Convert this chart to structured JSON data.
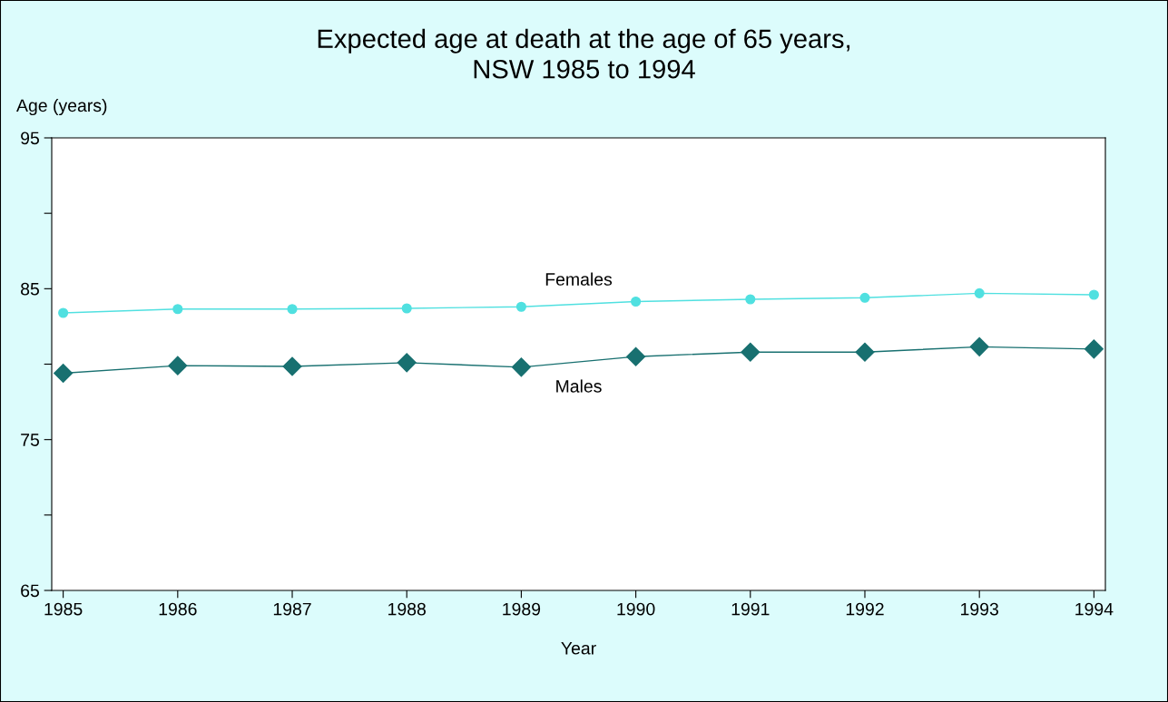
{
  "chart_data": {
    "type": "line",
    "title": "Expected age at death at the age of 65 years,\nNSW 1985 to 1994",
    "xlabel": "Year",
    "ylabel": "Age (years)",
    "x": [
      1985,
      1986,
      1987,
      1988,
      1989,
      1990,
      1991,
      1992,
      1993,
      1994
    ],
    "series": [
      {
        "name": "Females",
        "color": "#50e0e0",
        "marker": "circle",
        "values": [
          83.4,
          83.65,
          83.65,
          83.7,
          83.8,
          84.15,
          84.3,
          84.4,
          84.7,
          84.6
        ]
      },
      {
        "name": "Males",
        "color": "#187070",
        "marker": "diamond",
        "values": [
          79.4,
          79.9,
          79.85,
          80.1,
          79.8,
          80.5,
          80.8,
          80.8,
          81.15,
          81.0
        ]
      }
    ],
    "xlim": [
      1984.9,
      1994.1
    ],
    "xticks": [
      1985,
      1986,
      1987,
      1988,
      1989,
      1990,
      1991,
      1992,
      1993,
      1994
    ],
    "ylim": [
      65,
      95
    ],
    "yticks": [
      65,
      {
        "value": 70,
        "label": null
      },
      75,
      {
        "value": 80,
        "label": null
      },
      85,
      {
        "value": 90,
        "label": null
      },
      95
    ],
    "grid": false,
    "legend": false,
    "line_style": "solid"
  }
}
